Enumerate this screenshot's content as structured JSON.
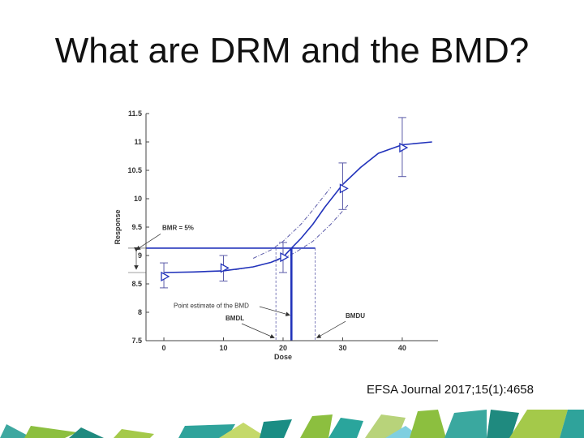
{
  "slide": {
    "title": "What are DRM and the BMD?",
    "citation": "EFSA Journal 2017;15(1):4658"
  },
  "colors": {
    "curve": "#2233bb",
    "ci": "#5a5aa8",
    "axis": "#444444",
    "text": "#333333"
  },
  "chart_data": {
    "type": "scatter",
    "xlabel": "Dose",
    "ylabel": "Response",
    "xlim": [
      -3,
      46
    ],
    "ylim": [
      7.5,
      11.5
    ],
    "x_ticks": [
      "0",
      "10",
      "20",
      "30",
      "40"
    ],
    "y_ticks": [
      "7.5",
      "8",
      "8.5",
      "9",
      "9.5",
      "10",
      "10.5",
      "11",
      "11.5"
    ],
    "series": [
      {
        "marker": "triangle-right",
        "points": [
          {
            "x": 0,
            "y": 8.63,
            "lower": 8.43,
            "upper": 8.87
          },
          {
            "x": 10,
            "y": 8.78,
            "lower": 8.55,
            "upper": 9.0
          },
          {
            "x": 20,
            "y": 8.97,
            "lower": 8.7,
            "upper": 9.23
          },
          {
            "x": 30,
            "y": 10.18,
            "lower": 9.81,
            "upper": 10.63
          },
          {
            "x": 40,
            "y": 10.9,
            "lower": 10.39,
            "upper": 11.43
          }
        ]
      }
    ],
    "fitted_curve": {
      "x": [
        0,
        5,
        10,
        15,
        18,
        20,
        21.4,
        23,
        25,
        27,
        30,
        33,
        36,
        40,
        45
      ],
      "y": [
        8.7,
        8.71,
        8.73,
        8.8,
        8.88,
        8.97,
        9.13,
        9.3,
        9.55,
        9.85,
        10.25,
        10.55,
        10.8,
        10.95,
        11.0
      ]
    },
    "confidence_bounds": {
      "upper": {
        "x": [
          15,
          18,
          20,
          23,
          25,
          28
        ],
        "y": [
          8.95,
          9.1,
          9.25,
          9.55,
          9.8,
          10.2
        ]
      },
      "lower": {
        "x": [
          12,
          15,
          18,
          20,
          22,
          25,
          28,
          31
        ],
        "y": [
          8.75,
          8.8,
          8.88,
          8.95,
          9.05,
          9.25,
          9.55,
          9.9
        ]
      }
    },
    "bmd_lines": {
      "bmr_response": 9.13,
      "background_response": 8.7,
      "bmd": 21.4,
      "bmdl": 18.8,
      "bmdu": 25.4
    },
    "annotations": {
      "bmr": "BMR = 5%",
      "point_estimate": "Point estimate of the BMD",
      "bmdl": "BMDL",
      "bmdu": "BMDU"
    }
  }
}
